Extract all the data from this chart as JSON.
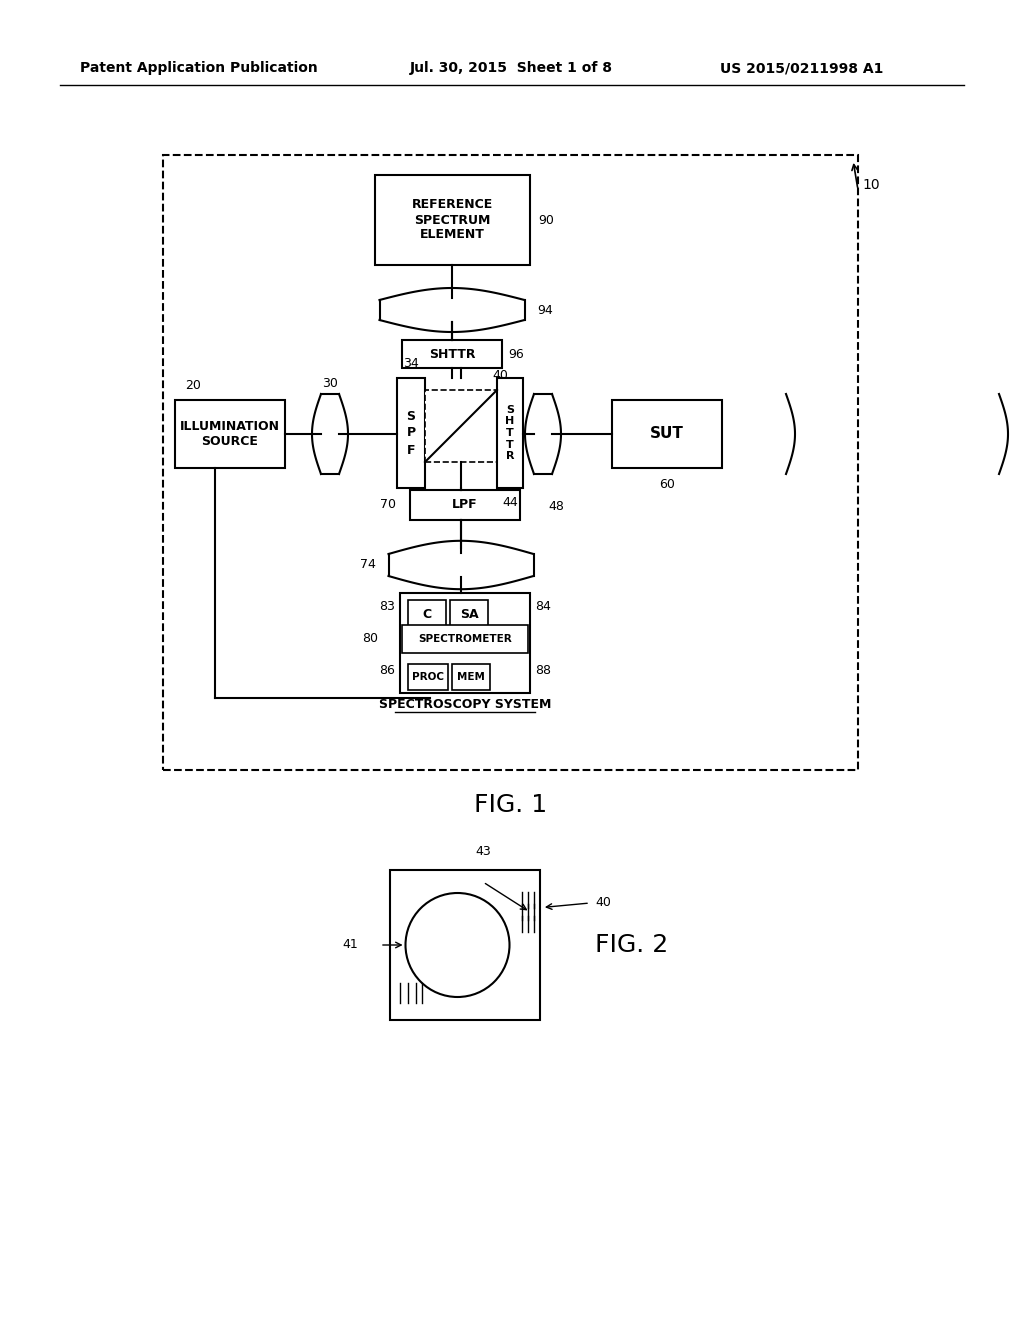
{
  "bg_color": "#ffffff",
  "header_left": "Patent Application Publication",
  "header_mid": "Jul. 30, 2015  Sheet 1 of 8",
  "header_right": "US 2015/0211998 A1",
  "fig1_label": "FIG. 1",
  "fig2_label": "FIG. 2",
  "label_10": "10",
  "label_20": "20",
  "label_30": "30",
  "label_34": "34",
  "label_40": "40",
  "label_41": "41",
  "label_43": "43",
  "label_44": "44",
  "label_48": "48",
  "label_60": "60",
  "label_70": "70",
  "label_74": "74",
  "label_80": "80",
  "label_83": "83",
  "label_84": "84",
  "label_86": "86",
  "label_88": "88",
  "label_90": "90",
  "label_94": "94",
  "label_96": "96",
  "text_illum": "ILLUMINATION\nSOURCE",
  "text_ref": "REFERENCE\nSPECTRUM\nELEMENT",
  "text_shttr": "SHTTR",
  "text_spf": "S\nP\nF",
  "text_shtr2": "S\nH\nT\nT\nR",
  "text_lpf": "LPF",
  "text_sut": "SUT",
  "text_c": "C",
  "text_sa": "SA",
  "text_spectrometer": "SPECTROMETER",
  "text_proc": "PROC",
  "text_mem": "MEM",
  "text_spectroscopy": "SPECTROSCOPY SYSTEM"
}
